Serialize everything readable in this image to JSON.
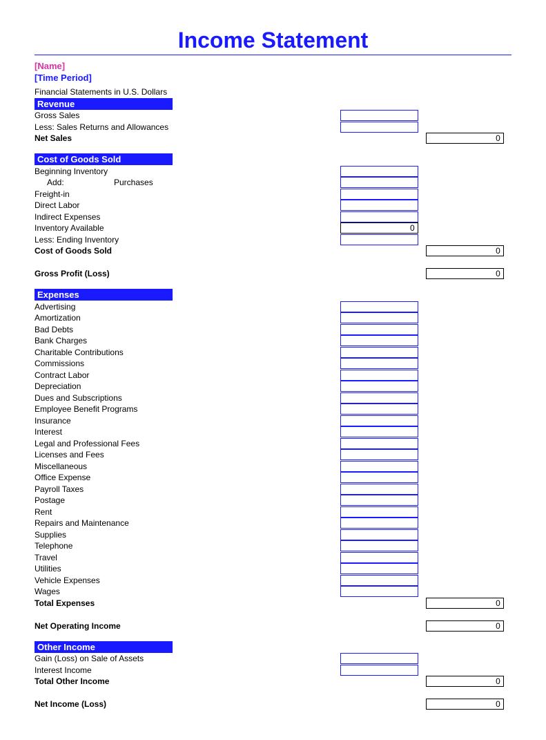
{
  "colors": {
    "title": "#1a1aff",
    "rule": "#1a1aff",
    "section_bg": "#1a1aff",
    "cell_border": "#1a1aff",
    "name": "#d633a3",
    "period": "#1a1aff"
  },
  "title": "Income Statement",
  "meta": {
    "name": "[Name]",
    "period": "[Time Period]",
    "subtitle": "Financial Statements in U.S. Dollars"
  },
  "sections": {
    "revenue": {
      "header": "Revenue",
      "items": [
        {
          "label": "Gross Sales",
          "indent": 1,
          "col1": "cell"
        },
        {
          "label": "Less: Sales Returns and Allowances",
          "indent": 1,
          "col1": "cell"
        },
        {
          "label": "Net Sales",
          "indent": 2,
          "bold": true,
          "col2": "total",
          "value2": "0"
        }
      ]
    },
    "cogs": {
      "header": "Cost of Goods Sold",
      "items": [
        {
          "label": "Beginning Inventory",
          "indent": 1,
          "col1": "cell"
        },
        {
          "label": "Add:",
          "sublabel": "Purchases",
          "indent": 1,
          "subindent": 3,
          "col1": "cell"
        },
        {
          "label": "Freight-in",
          "indent": 3,
          "col1": "cell"
        },
        {
          "label": "Direct Labor",
          "indent": 3,
          "col1": "cell"
        },
        {
          "label": "Indirect Expenses",
          "indent": 3,
          "col1": "cell"
        },
        {
          "label": "Inventory Available",
          "indent": 1,
          "col1": "black",
          "value1": "0"
        },
        {
          "label": "Less: Ending Inventory",
          "indent": 1,
          "col1": "cell"
        },
        {
          "label": "Cost of Goods Sold",
          "indent": 2,
          "bold": true,
          "col2": "total",
          "value2": "0"
        },
        {
          "spacer": true
        },
        {
          "label": "Gross Profit (Loss)",
          "indent": 2,
          "bold": true,
          "col2": "total",
          "value2": "0"
        }
      ]
    },
    "expenses": {
      "header": "Expenses",
      "items": [
        {
          "label": "Advertising",
          "indent": 1,
          "col1": "cell"
        },
        {
          "label": "Amortization",
          "indent": 1,
          "col1": "cell"
        },
        {
          "label": "Bad Debts",
          "indent": 1,
          "col1": "cell"
        },
        {
          "label": "Bank Charges",
          "indent": 1,
          "col1": "cell"
        },
        {
          "label": "Charitable Contributions",
          "indent": 1,
          "col1": "cell"
        },
        {
          "label": "Commissions",
          "indent": 1,
          "col1": "cell"
        },
        {
          "label": "Contract Labor",
          "indent": 1,
          "col1": "cell"
        },
        {
          "label": "Depreciation",
          "indent": 1,
          "col1": "cell"
        },
        {
          "label": "Dues and Subscriptions",
          "indent": 1,
          "col1": "cell"
        },
        {
          "label": "Employee Benefit Programs",
          "indent": 1,
          "col1": "cell"
        },
        {
          "label": "Insurance",
          "indent": 1,
          "col1": "cell"
        },
        {
          "label": "Interest",
          "indent": 1,
          "col1": "cell"
        },
        {
          "label": "Legal and Professional Fees",
          "indent": 1,
          "col1": "cell"
        },
        {
          "label": "Licenses and Fees",
          "indent": 1,
          "col1": "cell"
        },
        {
          "label": "Miscellaneous",
          "indent": 1,
          "col1": "cell"
        },
        {
          "label": "Office Expense",
          "indent": 1,
          "col1": "cell"
        },
        {
          "label": "Payroll Taxes",
          "indent": 1,
          "col1": "cell"
        },
        {
          "label": "Postage",
          "indent": 1,
          "col1": "cell"
        },
        {
          "label": "Rent",
          "indent": 1,
          "col1": "cell"
        },
        {
          "label": "Repairs and Maintenance",
          "indent": 1,
          "col1": "cell"
        },
        {
          "label": "Supplies",
          "indent": 1,
          "col1": "cell"
        },
        {
          "label": "Telephone",
          "indent": 1,
          "col1": "cell"
        },
        {
          "label": "Travel",
          "indent": 1,
          "col1": "cell"
        },
        {
          "label": "Utilities",
          "indent": 1,
          "col1": "cell"
        },
        {
          "label": "Vehicle Expenses",
          "indent": 1,
          "col1": "cell"
        },
        {
          "label": "Wages",
          "indent": 1,
          "col1": "cell"
        },
        {
          "label": "Total Expenses",
          "indent": 2,
          "bold": true,
          "col2": "total",
          "value2": "0"
        },
        {
          "spacer": true
        },
        {
          "label": "Net Operating Income",
          "indent": 2,
          "bold": true,
          "col2": "total",
          "value2": "0"
        }
      ]
    },
    "other": {
      "header": "Other Income",
      "items": [
        {
          "label": "Gain (Loss) on Sale of Assets",
          "indent": 1,
          "col1": "cell"
        },
        {
          "label": "Interest Income",
          "indent": 1,
          "col1": "cell"
        },
        {
          "label": "Total Other Income",
          "indent": 2,
          "bold": true,
          "col2": "total",
          "value2": "0"
        },
        {
          "spacer": true
        },
        {
          "label": "Net Income (Loss)",
          "indent": 2,
          "bold": true,
          "col2": "total",
          "value2": "0"
        }
      ]
    }
  }
}
